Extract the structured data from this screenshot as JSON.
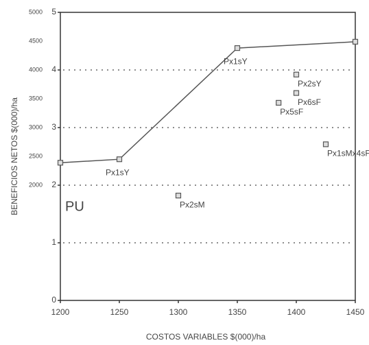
{
  "chart_data": {
    "type": "line",
    "x_label": "COSTOS VARIABLES $(000)/ha",
    "y_label": "BENEFICIOS NETOS $(000)/ha",
    "annotation": "PU",
    "x": [
      1200,
      1250,
      1350,
      1450
    ],
    "values": [
      2.39,
      2.45,
      4.38,
      4.49
    ],
    "line_labels": [
      null,
      "Px1sY",
      "Px1sY",
      null
    ],
    "points": {
      "x": [
        1400,
        1400,
        1385,
        1425,
        1300
      ],
      "y": [
        3.92,
        3.6,
        3.43,
        2.71,
        1.82
      ],
      "labels": [
        "Px2sY",
        "Px6sF",
        "Px5sF",
        "Px1sMx4sF",
        "Px2sM"
      ]
    },
    "color": "#555555",
    "xlim": [
      1200,
      1450
    ],
    "xticks": [
      1200,
      1250,
      1300,
      1350,
      1400,
      1450
    ],
    "ylim": [
      0,
      5
    ],
    "yticks": [
      0,
      1,
      2,
      3,
      4,
      5
    ],
    "y2lim": [
      0,
      5000
    ],
    "y2ticks": [
      2000,
      2500,
      3000,
      3500,
      4000,
      4500,
      5000
    ],
    "grid": true
  }
}
